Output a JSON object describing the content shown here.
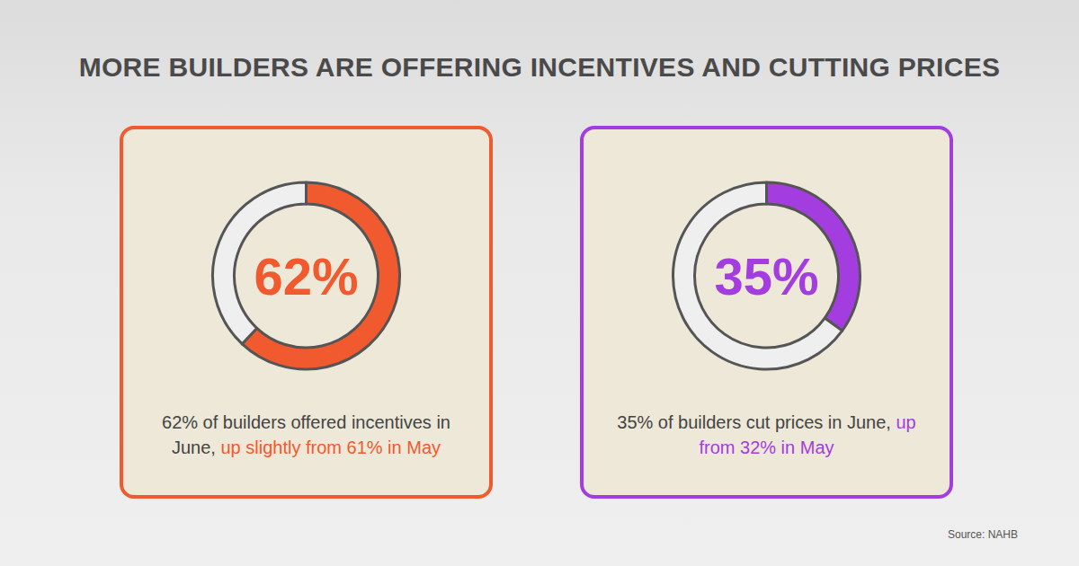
{
  "title": "MORE BUILDERS ARE OFFERING INCENTIVES AND CUTTING PRICES",
  "source": "Source: NAHB",
  "chart_data": [
    {
      "type": "pie",
      "values": [
        62,
        38
      ],
      "value_labels": [
        "62%",
        null
      ],
      "colors": [
        "#f05a2e",
        "#efefef"
      ],
      "caption": "62% of builders offered incentives in June,",
      "caption_highlight": "up slightly from 61% in May"
    },
    {
      "type": "pie",
      "values": [
        35,
        65
      ],
      "value_labels": [
        "35%",
        null
      ],
      "colors": [
        "#a43ddf",
        "#efefef"
      ],
      "caption": "35% of builders cut prices in June,",
      "caption_highlight": "up from 32% in May"
    }
  ]
}
